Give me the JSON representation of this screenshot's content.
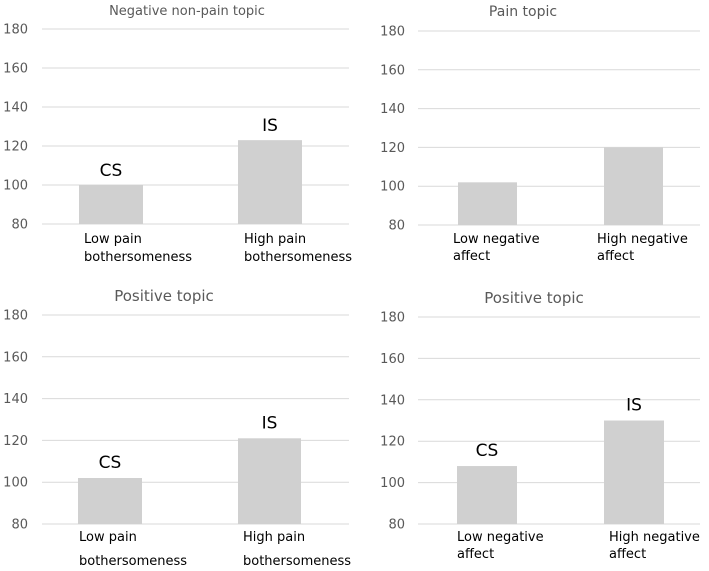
{
  "colors": {
    "bar": "#d0d0d0",
    "grid": "#d9d9d9",
    "title": "#595959",
    "tick": "#595959",
    "text": "#000000"
  },
  "chart_data": [
    {
      "type": "bar",
      "title": "Negative non-pain topic",
      "ylim": [
        80,
        180
      ],
      "yticks": [
        "80",
        "100",
        "120",
        "140",
        "160",
        "180"
      ],
      "grid": true,
      "categories": [
        [
          "Low pain",
          "bothersomeness"
        ],
        [
          "High pain",
          "bothersomeness"
        ]
      ],
      "values": [
        100,
        123
      ],
      "data_labels": [
        "CS",
        "IS"
      ],
      "xlabel": "",
      "ylabel": ""
    },
    {
      "type": "bar",
      "title": "Pain topic",
      "ylim": [
        80,
        180
      ],
      "yticks": [
        "80",
        "100",
        "120",
        "140",
        "160",
        "180"
      ],
      "grid": true,
      "categories": [
        [
          "Low negative",
          "affect"
        ],
        [
          "High negative",
          "affect"
        ]
      ],
      "values": [
        102,
        120
      ],
      "data_labels": [
        "",
        ""
      ],
      "xlabel": "",
      "ylabel": ""
    },
    {
      "type": "bar",
      "title": "Positive topic",
      "ylim": [
        80,
        180
      ],
      "yticks": [
        "80",
        "100",
        "120",
        "140",
        "160",
        "180"
      ],
      "grid": true,
      "categories": [
        [
          "Low pain",
          "bothersomeness"
        ],
        [
          "High pain",
          "bothersomeness"
        ]
      ],
      "values": [
        102,
        121
      ],
      "data_labels": [
        "CS",
        "IS"
      ],
      "xlabel": "",
      "ylabel": ""
    },
    {
      "type": "bar",
      "title": "Positive topic",
      "ylim": [
        80,
        180
      ],
      "yticks": [
        "80",
        "100",
        "120",
        "140",
        "160",
        "180"
      ],
      "grid": true,
      "categories": [
        [
          "Low negative",
          "affect"
        ],
        [
          "High negative",
          "affect"
        ]
      ],
      "values": [
        108,
        130
      ],
      "data_labels": [
        "CS",
        "IS"
      ],
      "xlabel": "",
      "ylabel": ""
    }
  ]
}
